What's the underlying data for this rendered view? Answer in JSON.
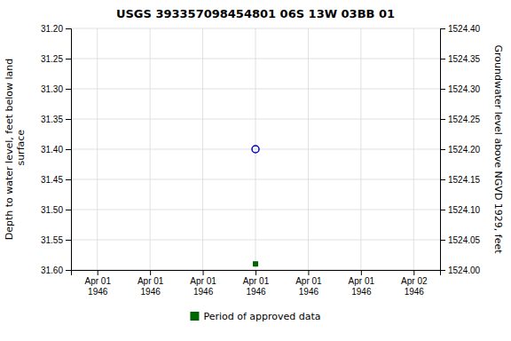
{
  "chart_data": {
    "type": "scatter",
    "title": "USGS 393357098454801 06S 13W 03BB  01",
    "ylabel": "Depth to water level, feet below land\n surface",
    "y2label": "Groundwater level above NGVD 1929, feet",
    "categories": [
      "Apr 01\n1946",
      "Apr 01\n1946",
      "Apr 01\n1946",
      "Apr 01\n1946",
      "Apr 01\n1946",
      "Apr 01\n1946",
      "Apr 02\n1946"
    ],
    "series": [
      {
        "color": "#0000cc",
        "marker": "circle-open",
        "values": [
          null,
          null,
          null,
          31.4,
          null,
          null,
          null
        ]
      },
      {
        "name": "Period of approved data",
        "color": "#006600",
        "marker": "square",
        "values": [
          null,
          null,
          null,
          31.59,
          null,
          null,
          null
        ]
      }
    ],
    "ylim": [
      31.6,
      31.2
    ],
    "yticks": [
      {
        "value": 31.2,
        "label": "31.20"
      },
      31.25,
      {
        "value": 31.3,
        "label": "31.30"
      },
      31.35,
      {
        "value": 31.4,
        "label": "31.40"
      },
      31.45,
      {
        "value": 31.5,
        "label": "31.50"
      },
      31.55,
      {
        "value": 31.6,
        "label": "31.60"
      }
    ],
    "y2lim": [
      1524.0,
      1524.4
    ],
    "y2ticks": [
      {
        "value": 1524.4,
        "label": "1524.40"
      },
      1524.35,
      {
        "value": 1524.3,
        "label": "1524.30"
      },
      1524.25,
      {
        "value": 1524.2,
        "label": "1524.20"
      },
      1524.15,
      {
        "value": 1524.1,
        "label": "1524.10"
      },
      1524.05,
      {
        "value": 1524.0,
        "label": "1524.00"
      }
    ],
    "grid": true,
    "legend": "bottom"
  }
}
